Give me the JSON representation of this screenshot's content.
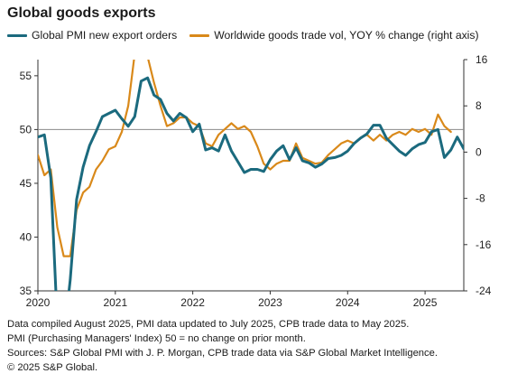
{
  "chart_data": {
    "type": "line",
    "title": "Global goods exports",
    "x_ticks": [
      "2020",
      "2021",
      "2022",
      "2023",
      "2024",
      "2025"
    ],
    "x_range": [
      "2020-01",
      "2025-07"
    ],
    "y_left": {
      "ticks": [
        35,
        40,
        45,
        50,
        55
      ],
      "range": [
        35,
        56.5
      ]
    },
    "y_right": {
      "ticks": [
        -24,
        -16,
        -8,
        0,
        8,
        16
      ],
      "range": [
        -24,
        16
      ]
    },
    "reference_line": 50,
    "grid": false,
    "legend_position": "top",
    "series": [
      {
        "name": "Global PMI new export orders",
        "axis": "left",
        "color": "#1b6a7e",
        "data": [
          [
            "2020-01",
            49.3
          ],
          [
            "2020-02",
            49.5
          ],
          [
            "2020-03",
            45.5
          ],
          [
            "2020-04",
            32.0
          ],
          [
            "2020-05",
            30.5
          ],
          [
            "2020-06",
            36.0
          ],
          [
            "2020-07",
            43.5
          ],
          [
            "2020-08",
            46.5
          ],
          [
            "2020-09",
            48.5
          ],
          [
            "2020-10",
            49.8
          ],
          [
            "2020-11",
            51.2
          ],
          [
            "2020-12",
            51.5
          ],
          [
            "2021-01",
            51.8
          ],
          [
            "2021-02",
            51.0
          ],
          [
            "2021-03",
            50.3
          ],
          [
            "2021-04",
            51.2
          ],
          [
            "2021-05",
            54.5
          ],
          [
            "2021-06",
            54.8
          ],
          [
            "2021-07",
            53.2
          ],
          [
            "2021-08",
            52.8
          ],
          [
            "2021-09",
            51.5
          ],
          [
            "2021-10",
            50.8
          ],
          [
            "2021-11",
            51.5
          ],
          [
            "2021-12",
            51.1
          ],
          [
            "2022-01",
            49.8
          ],
          [
            "2022-02",
            50.5
          ],
          [
            "2022-03",
            48.1
          ],
          [
            "2022-04",
            48.3
          ],
          [
            "2022-05",
            48.0
          ],
          [
            "2022-06",
            49.5
          ],
          [
            "2022-07",
            48.0
          ],
          [
            "2022-08",
            47.0
          ],
          [
            "2022-09",
            46.0
          ],
          [
            "2022-10",
            46.3
          ],
          [
            "2022-11",
            46.3
          ],
          [
            "2022-12",
            46.1
          ],
          [
            "2023-01",
            47.2
          ],
          [
            "2023-02",
            48.0
          ],
          [
            "2023-03",
            48.5
          ],
          [
            "2023-04",
            47.2
          ],
          [
            "2023-05",
            48.3
          ],
          [
            "2023-06",
            47.1
          ],
          [
            "2023-07",
            46.9
          ],
          [
            "2023-08",
            46.5
          ],
          [
            "2023-09",
            46.8
          ],
          [
            "2023-10",
            47.3
          ],
          [
            "2023-11",
            47.4
          ],
          [
            "2023-12",
            47.6
          ],
          [
            "2024-01",
            48.0
          ],
          [
            "2024-02",
            48.7
          ],
          [
            "2024-03",
            49.2
          ],
          [
            "2024-04",
            49.6
          ],
          [
            "2024-05",
            50.4
          ],
          [
            "2024-06",
            50.4
          ],
          [
            "2024-07",
            49.2
          ],
          [
            "2024-08",
            48.6
          ],
          [
            "2024-09",
            48.0
          ],
          [
            "2024-10",
            47.6
          ],
          [
            "2024-11",
            48.2
          ],
          [
            "2024-12",
            48.6
          ],
          [
            "2025-01",
            48.8
          ],
          [
            "2025-02",
            49.8
          ],
          [
            "2025-03",
            50.0
          ],
          [
            "2025-04",
            47.4
          ],
          [
            "2025-05",
            48.1
          ],
          [
            "2025-06",
            49.3
          ],
          [
            "2025-07",
            48.2
          ]
        ]
      },
      {
        "name": "Worldwide goods trade vol, YOY % change (right axis)",
        "axis": "right",
        "color": "#d9891a",
        "data": [
          [
            "2020-01",
            -0.5
          ],
          [
            "2020-02",
            -4.0
          ],
          [
            "2020-03",
            -3.0
          ],
          [
            "2020-04",
            -13.0
          ],
          [
            "2020-05",
            -18.0
          ],
          [
            "2020-06",
            -18.0
          ],
          [
            "2020-07",
            -10.0
          ],
          [
            "2020-08",
            -7.0
          ],
          [
            "2020-09",
            -6.0
          ],
          [
            "2020-10",
            -3.0
          ],
          [
            "2020-11",
            -1.5
          ],
          [
            "2020-12",
            0.5
          ],
          [
            "2021-01",
            1.0
          ],
          [
            "2021-02",
            3.5
          ],
          [
            "2021-03",
            8.0
          ],
          [
            "2021-04",
            17.0
          ],
          [
            "2021-05",
            20.0
          ],
          [
            "2021-06",
            16.5
          ],
          [
            "2021-07",
            12.0
          ],
          [
            "2021-08",
            8.0
          ],
          [
            "2021-09",
            4.5
          ],
          [
            "2021-10",
            5.0
          ],
          [
            "2021-11",
            6.0
          ],
          [
            "2021-12",
            6.0
          ],
          [
            "2022-01",
            5.0
          ],
          [
            "2022-02",
            4.5
          ],
          [
            "2022-03",
            1.5
          ],
          [
            "2022-04",
            1.0
          ],
          [
            "2022-05",
            3.0
          ],
          [
            "2022-06",
            4.0
          ],
          [
            "2022-07",
            5.0
          ],
          [
            "2022-08",
            4.0
          ],
          [
            "2022-09",
            4.5
          ],
          [
            "2022-10",
            3.5
          ],
          [
            "2022-11",
            1.0
          ],
          [
            "2022-12",
            -2.0
          ],
          [
            "2023-01",
            -3.0
          ],
          [
            "2023-02",
            -2.0
          ],
          [
            "2023-03",
            -1.5
          ],
          [
            "2023-04",
            -1.5
          ],
          [
            "2023-05",
            1.5
          ],
          [
            "2023-06",
            -1.0
          ],
          [
            "2023-07",
            -1.5
          ],
          [
            "2023-08",
            -2.0
          ],
          [
            "2023-09",
            -1.8
          ],
          [
            "2023-10",
            -0.5
          ],
          [
            "2023-11",
            0.5
          ],
          [
            "2023-12",
            1.5
          ],
          [
            "2024-01",
            2.0
          ],
          [
            "2024-02",
            1.5
          ],
          [
            "2024-03",
            2.5
          ],
          [
            "2024-04",
            3.0
          ],
          [
            "2024-05",
            2.0
          ],
          [
            "2024-06",
            3.0
          ],
          [
            "2024-07",
            2.0
          ],
          [
            "2024-08",
            3.0
          ],
          [
            "2024-09",
            3.5
          ],
          [
            "2024-10",
            3.0
          ],
          [
            "2024-11",
            4.0
          ],
          [
            "2024-12",
            3.5
          ],
          [
            "2025-01",
            4.0
          ],
          [
            "2025-02",
            3.0
          ],
          [
            "2025-03",
            6.5
          ],
          [
            "2025-04",
            4.5
          ],
          [
            "2025-05",
            3.5
          ]
        ]
      }
    ]
  },
  "notes": [
    "Data compiled August 2025, PMI data updated to July 2025, CPB trade data to May 2025.",
    "PMI (Purchasing Managers' Index) 50 = no change on prior month.",
    "Sources: S&P Global PMI with J. P. Morgan, CPB trade data via S&P Global Market Intelligence.",
    "© 2025 S&P Global."
  ]
}
